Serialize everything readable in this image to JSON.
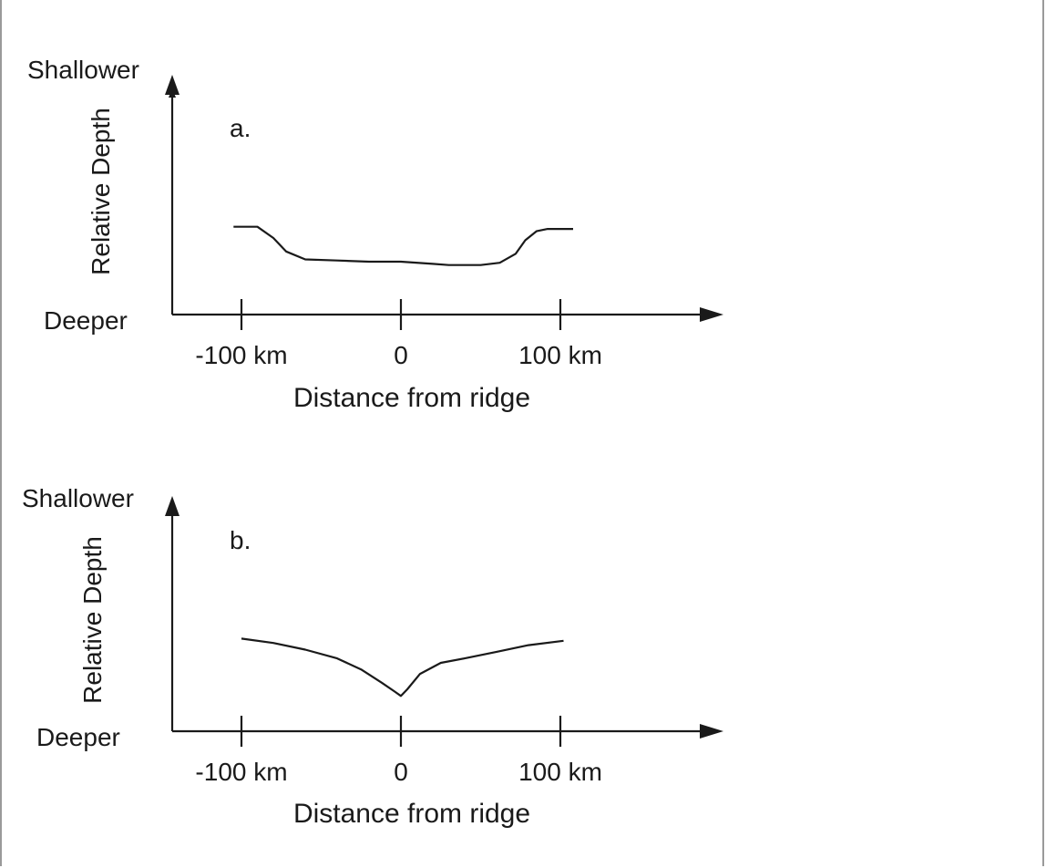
{
  "chart_data": [
    {
      "type": "line",
      "panel_label": "a.",
      "ylabel": "Relative Depth",
      "y_top_label": "Shallower",
      "y_bottom_label": "Deeper",
      "xlabel": "Distance from ridge",
      "xticks": [
        {
          "value": -100,
          "label": "-100 km"
        },
        {
          "value": 0,
          "label": "0"
        },
        {
          "value": 100,
          "label": "100 km"
        }
      ],
      "xlim": [
        -145,
        205
      ],
      "ylim": [
        0,
        1
      ],
      "grid": false,
      "series": [
        {
          "x": [
            -105,
            -90,
            -80,
            -72,
            -60,
            -40,
            -20,
            0,
            20,
            30,
            50,
            62,
            72,
            78,
            85,
            92,
            108
          ],
          "y": [
            0.39,
            0.39,
            0.34,
            0.28,
            0.245,
            0.24,
            0.235,
            0.235,
            0.225,
            0.22,
            0.22,
            0.23,
            0.27,
            0.33,
            0.37,
            0.38,
            0.38
          ]
        }
      ]
    },
    {
      "type": "line",
      "panel_label": "b.",
      "ylabel": "Relative Depth",
      "y_top_label": "Shallower",
      "y_bottom_label": "Deeper",
      "xlabel": "Distance from ridge",
      "xticks": [
        {
          "value": -100,
          "label": "-100 km"
        },
        {
          "value": 0,
          "label": "0"
        },
        {
          "value": 100,
          "label": "100 km"
        }
      ],
      "xlim": [
        -145,
        205
      ],
      "ylim": [
        0,
        1
      ],
      "grid": false,
      "series": [
        {
          "x": [
            -100,
            -80,
            -60,
            -40,
            -25,
            -12,
            -4,
            0,
            4,
            12,
            25,
            40,
            60,
            80,
            102
          ],
          "y": [
            0.42,
            0.4,
            0.37,
            0.33,
            0.28,
            0.22,
            0.18,
            0.16,
            0.19,
            0.26,
            0.31,
            0.33,
            0.36,
            0.39,
            0.41
          ]
        }
      ]
    }
  ]
}
